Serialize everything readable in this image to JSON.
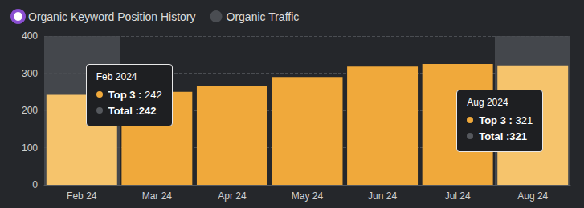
{
  "chart_data": {
    "type": "bar",
    "categories": [
      "Feb 24",
      "Mar 24",
      "Apr 24",
      "May 24",
      "Jun 24",
      "Jul 24",
      "Aug 24"
    ],
    "series": [
      {
        "name": "Organic Keyword Position History",
        "type": "bar",
        "color": "#f0a93b",
        "colors": [
          "#f6c46c",
          "#f0a93b",
          "#f0a93b",
          "#f0a93b",
          "#f0a93b",
          "#f0a93b",
          "#f6c46c"
        ],
        "values": [
          242,
          250,
          265,
          290,
          318,
          325,
          321
        ]
      },
      {
        "name": "Organic Traffic",
        "type": "line",
        "color": "#4a4d52",
        "values": [
          null,
          null,
          null,
          null,
          null,
          null,
          null
        ]
      }
    ],
    "ylim": [
      0,
      400
    ],
    "yticks": [
      0,
      100,
      200,
      300,
      400
    ],
    "grid": true,
    "legend": "top-left",
    "annotations": [
      {
        "category": "Feb 24",
        "title": "Feb 2024",
        "lines": [
          {
            "label": "Top 3 :",
            "value": 242,
            "color": "#f0a93b"
          },
          {
            "label": "Total :",
            "value": 242,
            "color": "#55585d"
          }
        ]
      },
      {
        "category": "Aug 24",
        "title": "Aug 2024",
        "lines": [
          {
            "label": "Top 3 :",
            "value": 321,
            "color": "#f0a93b"
          },
          {
            "label": "Total :",
            "value": 321,
            "color": "#55585d"
          }
        ]
      }
    ]
  }
}
